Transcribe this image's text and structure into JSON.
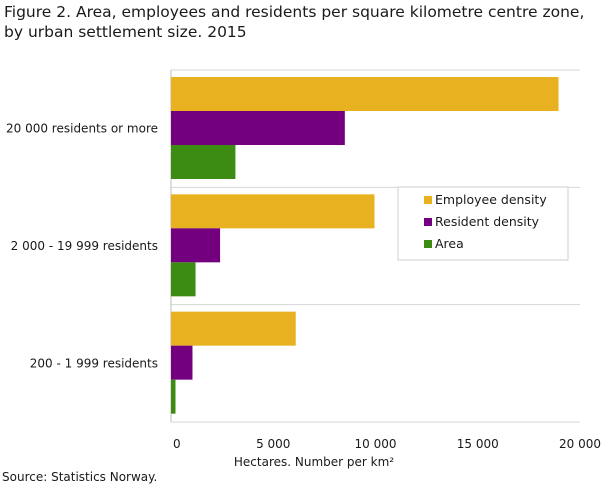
{
  "title": "Figure 2. Area, employees and residents per square kilometre centre zone, by urban settlement size. 2015",
  "source": "Source: Statistics Norway.",
  "chart_data": {
    "type": "bar",
    "orientation": "horizontal",
    "categories": [
      "20 000 residents or more",
      "2 000 - 19 999 residents",
      "200 - 1 999 residents"
    ],
    "series": [
      {
        "name": "Employee density",
        "color": "#e8b11f",
        "values": [
          18950,
          9950,
          6100
        ]
      },
      {
        "name": "Resident density",
        "color": "#72007f",
        "values": [
          8500,
          2400,
          1050
        ]
      },
      {
        "name": "Area",
        "color": "#3c8b12",
        "values": [
          3150,
          1200,
          220
        ]
      }
    ],
    "xlim": [
      0,
      20000
    ],
    "xticks": [
      0,
      5000,
      10000,
      15000,
      20000
    ],
    "xtick_labels": [
      "0",
      "5 000",
      "10 000",
      "15 000",
      "20 000"
    ],
    "xlabel": "Hectares.  Number per km²",
    "grid": "horizontal separators between categories",
    "legend_position": "right-center"
  }
}
